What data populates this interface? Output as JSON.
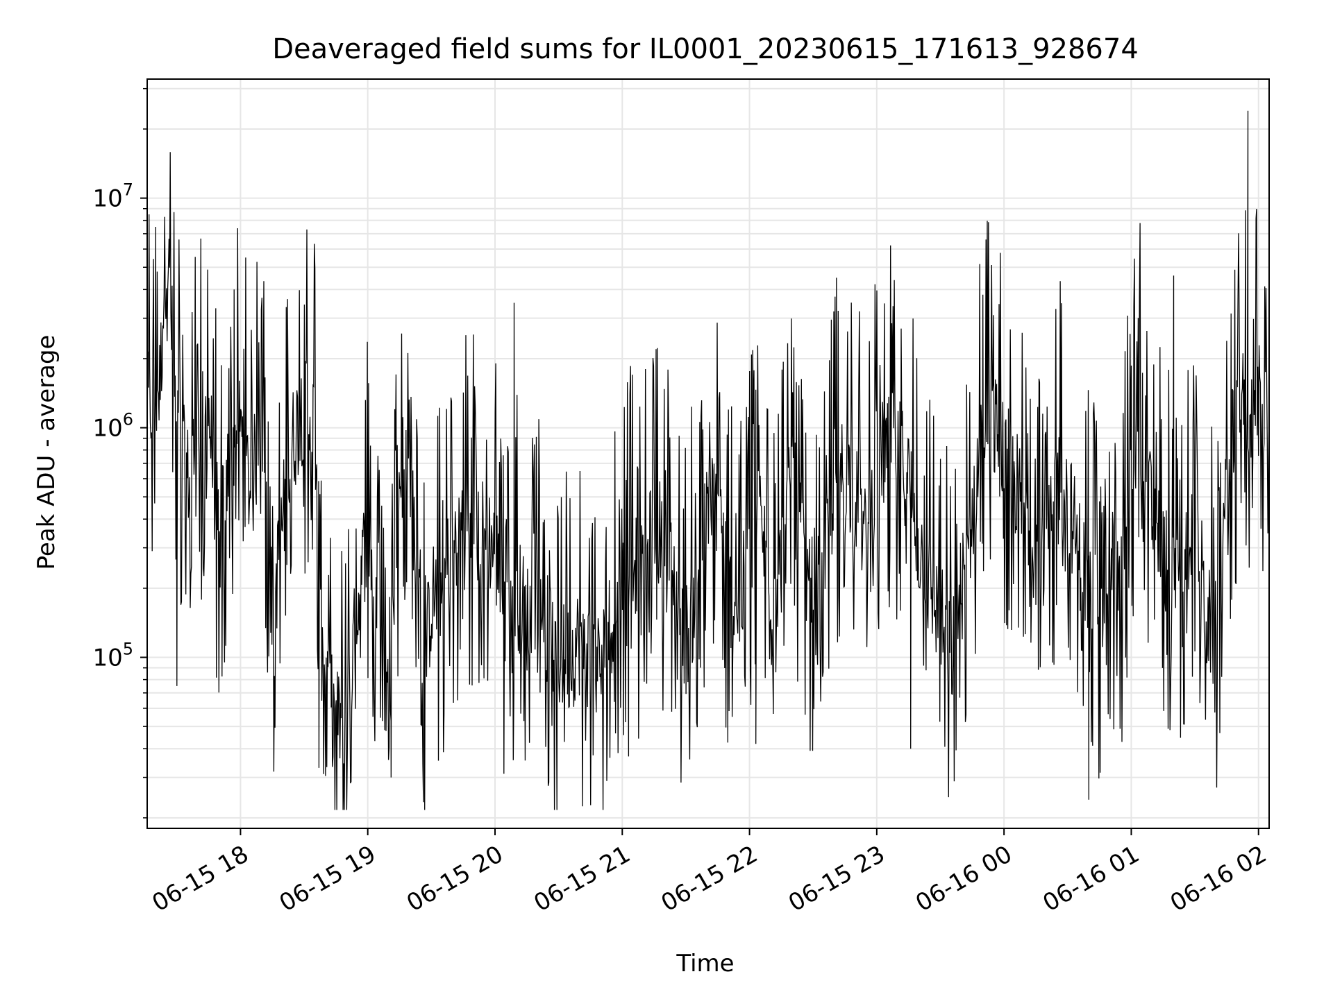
{
  "chart_data": {
    "type": "line",
    "title": "Deaveraged field sums for IL0001_20230615_171613_928674",
    "xlabel": "Time",
    "ylabel": "Peak ADU - average",
    "yscale": "log",
    "ylim": [
      18000,
      33000000
    ],
    "xlim": [
      "2023-06-15 17:16",
      "2023-06-16 02:05"
    ],
    "grid": true,
    "line_color": "#000000",
    "grid_color": "#e6e6e6",
    "x_ticks": [
      {
        "t": "2023-06-15 18:00",
        "label": "06-15 18"
      },
      {
        "t": "2023-06-15 19:00",
        "label": "06-15 19"
      },
      {
        "t": "2023-06-15 20:00",
        "label": "06-15 20"
      },
      {
        "t": "2023-06-15 21:00",
        "label": "06-15 21"
      },
      {
        "t": "2023-06-15 22:00",
        "label": "06-15 22"
      },
      {
        "t": "2023-06-15 23:00",
        "label": "06-15 23"
      },
      {
        "t": "2023-06-16 00:00",
        "label": "06-16 00"
      },
      {
        "t": "2023-06-16 01:00",
        "label": "06-16 01"
      },
      {
        "t": "2023-06-16 02:00",
        "label": "06-16 02"
      }
    ],
    "y_ticks": [
      {
        "value": 100000,
        "base": "10",
        "exp": "5"
      },
      {
        "value": 1000000,
        "base": "10",
        "exp": "6"
      },
      {
        "value": 10000000,
        "base": "10",
        "exp": "7"
      }
    ],
    "series": [
      {
        "x": [
          "2023-06-15 17:16",
          "2023-06-15 17:22",
          "2023-06-15 17:25",
          "2023-06-15 17:30",
          "2023-06-15 17:35",
          "2023-06-15 17:40",
          "2023-06-15 17:45",
          "2023-06-15 17:50",
          "2023-06-15 17:55",
          "2023-06-15 18:00",
          "2023-06-15 18:05",
          "2023-06-15 18:10",
          "2023-06-15 18:15",
          "2023-06-15 18:20",
          "2023-06-15 18:25",
          "2023-06-15 18:30",
          "2023-06-15 18:35",
          "2023-06-15 18:40",
          "2023-06-15 18:45",
          "2023-06-15 18:50",
          "2023-06-15 18:55",
          "2023-06-15 19:00",
          "2023-06-15 19:05",
          "2023-06-15 19:10",
          "2023-06-15 19:15",
          "2023-06-15 19:20",
          "2023-06-15 19:25",
          "2023-06-15 19:30",
          "2023-06-15 19:35",
          "2023-06-15 19:40",
          "2023-06-15 19:45",
          "2023-06-15 19:50",
          "2023-06-15 19:55",
          "2023-06-15 20:00",
          "2023-06-15 20:05",
          "2023-06-15 20:10",
          "2023-06-15 20:15",
          "2023-06-15 20:20",
          "2023-06-15 20:25",
          "2023-06-15 20:30",
          "2023-06-15 20:35",
          "2023-06-15 20:40",
          "2023-06-15 20:45",
          "2023-06-15 20:50",
          "2023-06-15 20:55",
          "2023-06-15 21:00",
          "2023-06-15 21:05",
          "2023-06-15 21:10",
          "2023-06-15 21:15",
          "2023-06-15 21:20",
          "2023-06-15 21:25",
          "2023-06-15 21:30",
          "2023-06-15 21:35",
          "2023-06-15 21:40",
          "2023-06-15 21:45",
          "2023-06-15 21:50",
          "2023-06-15 21:55",
          "2023-06-15 22:00",
          "2023-06-15 22:05",
          "2023-06-15 22:10",
          "2023-06-15 22:15",
          "2023-06-15 22:20",
          "2023-06-15 22:25",
          "2023-06-15 22:30",
          "2023-06-15 22:35",
          "2023-06-15 22:40",
          "2023-06-15 22:45",
          "2023-06-15 22:50",
          "2023-06-15 22:55",
          "2023-06-15 23:00",
          "2023-06-15 23:05",
          "2023-06-15 23:10",
          "2023-06-15 23:15",
          "2023-06-15 23:20",
          "2023-06-15 23:25",
          "2023-06-15 23:30",
          "2023-06-15 23:35",
          "2023-06-15 23:40",
          "2023-06-15 23:45",
          "2023-06-15 23:50",
          "2023-06-15 23:55",
          "2023-06-16 00:00",
          "2023-06-16 00:05",
          "2023-06-16 00:10",
          "2023-06-16 00:15",
          "2023-06-16 00:20",
          "2023-06-16 00:25",
          "2023-06-16 00:30",
          "2023-06-16 00:35",
          "2023-06-16 00:40",
          "2023-06-16 00:45",
          "2023-06-16 00:50",
          "2023-06-16 00:55",
          "2023-06-16 01:00",
          "2023-06-16 01:05",
          "2023-06-16 01:10",
          "2023-06-16 01:15",
          "2023-06-16 01:20",
          "2023-06-16 01:25",
          "2023-06-16 01:30",
          "2023-06-16 01:35",
          "2023-06-16 01:40",
          "2023-06-16 01:45",
          "2023-06-16 01:50",
          "2023-06-16 01:55",
          "2023-06-16 02:00",
          "2023-06-16 02:05"
        ],
        "y": [
          1200000,
          1500000,
          7500000,
          1000000,
          600000,
          900000,
          1200000,
          300000,
          800000,
          1000000,
          500000,
          1200000,
          150000,
          400000,
          900000,
          1300000,
          1000000,
          80000,
          50000,
          60000,
          150000,
          400000,
          100000,
          60000,
          600000,
          1000000,
          60000,
          180000,
          200000,
          300000,
          400000,
          350000,
          350000,
          300000,
          150000,
          200000,
          150000,
          150000,
          130000,
          100000,
          100000,
          120000,
          100000,
          90000,
          150000,
          200000,
          300000,
          200000,
          400000,
          300000,
          200000,
          120000,
          200000,
          400000,
          500000,
          200000,
          150000,
          300000,
          400000,
          200000,
          250000,
          600000,
          300000,
          100000,
          200000,
          600000,
          700000,
          500000,
          300000,
          700000,
          800000,
          800000,
          600000,
          300000,
          200000,
          150000,
          100000,
          200000,
          400000,
          1200000,
          1000000,
          800000,
          600000,
          400000,
          300000,
          250000,
          700000,
          500000,
          300000,
          200000,
          150000,
          300000,
          200000,
          600000,
          1200000,
          400000,
          300000,
          200000,
          250000,
          500000,
          150000,
          120000,
          500000,
          1300000,
          1200000,
          1300000,
          1200000
        ],
        "spikes": [
          {
            "t": "2023-06-15 17:20",
            "value": 7500000
          },
          {
            "t": "2023-06-15 17:30",
            "value": 75000
          },
          {
            "t": "2023-06-15 17:57",
            "value": 4000000
          },
          {
            "t": "2023-06-15 18:37",
            "value": 33000
          },
          {
            "t": "2023-06-15 19:11",
            "value": 30000
          },
          {
            "t": "2023-06-15 20:09",
            "value": 3500000
          },
          {
            "t": "2023-06-15 21:03",
            "value": 37000
          },
          {
            "t": "2023-06-15 22:03",
            "value": 42000
          },
          {
            "t": "2023-06-15 22:41",
            "value": 4500000
          },
          {
            "t": "2023-06-15 23:16",
            "value": 40000
          },
          {
            "t": "2023-06-16 00:40",
            "value": 24000
          },
          {
            "t": "2023-06-16 01:20",
            "value": 4600000
          },
          {
            "t": "2023-06-16 01:55",
            "value": 24000000
          }
        ]
      }
    ]
  }
}
